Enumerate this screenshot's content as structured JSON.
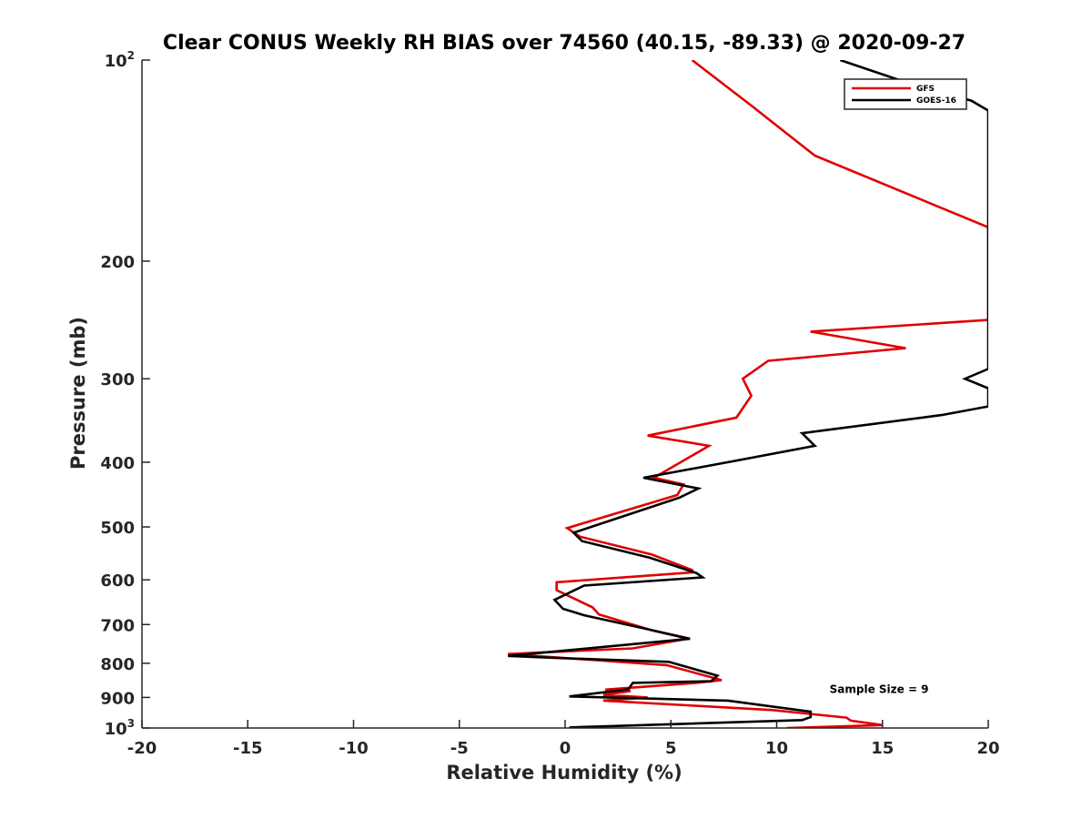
{
  "chart_data": {
    "type": "line",
    "title": "Clear CONUS Weekly RH BIAS over 74560 (40.15, -89.33) @ 2020-09-27",
    "xlabel": "Relative Humidity (%)",
    "ylabel": "Pressure (mb)",
    "xlim": [
      -20,
      20
    ],
    "ylim": [
      100,
      1000
    ],
    "yscale": "log",
    "y_reversed": true,
    "grid": false,
    "legend_position": "top-right",
    "x_ticks": [
      -20,
      -15,
      -10,
      -5,
      0,
      5,
      10,
      15,
      20
    ],
    "y_ticks": [
      {
        "value": 100,
        "label": "10",
        "sup": "2"
      },
      {
        "value": 200,
        "label": "200"
      },
      {
        "value": 300,
        "label": "300"
      },
      {
        "value": 400,
        "label": "400"
      },
      {
        "value": 500,
        "label": "500"
      },
      {
        "value": 600,
        "label": "600"
      },
      {
        "value": 700,
        "label": "700"
      },
      {
        "value": 800,
        "label": "800"
      },
      {
        "value": 900,
        "label": "900"
      },
      {
        "value": 1000,
        "label": "10",
        "sup": "3"
      }
    ],
    "series": [
      {
        "name": "GFS",
        "color": "#e00000",
        "points": [
          [
            6.0,
            100
          ],
          [
            8.8,
            117
          ],
          [
            11.8,
            139
          ],
          [
            20,
            178
          ],
          [
            20,
            245
          ],
          [
            11.6,
            255
          ],
          [
            16.1,
            270
          ],
          [
            9.6,
            282
          ],
          [
            8.4,
            300
          ],
          [
            8.8,
            318
          ],
          [
            8.1,
            343
          ],
          [
            3.9,
            365
          ],
          [
            6.8,
            378
          ],
          [
            4.2,
            422
          ],
          [
            5.6,
            432
          ],
          [
            5.3,
            448
          ],
          [
            0.1,
            502
          ],
          [
            0.7,
            517
          ],
          [
            4.1,
            550
          ],
          [
            6.0,
            580
          ],
          [
            6.0,
            585
          ],
          [
            -0.4,
            605
          ],
          [
            -0.4,
            622
          ],
          [
            1.3,
            660
          ],
          [
            1.6,
            676
          ],
          [
            4.1,
            714
          ],
          [
            5.8,
            735
          ],
          [
            3.2,
            760
          ],
          [
            -2.7,
            775
          ],
          [
            -0.2,
            785
          ],
          [
            4.8,
            805
          ],
          [
            7.4,
            848
          ],
          [
            6.2,
            856
          ],
          [
            1.9,
            876
          ],
          [
            3.1,
            880
          ],
          [
            1.8,
            892
          ],
          [
            3.9,
            900
          ],
          [
            1.8,
            910
          ],
          [
            9.8,
            940
          ],
          [
            13.3,
            965
          ],
          [
            13.5,
            975
          ],
          [
            15.0,
            990
          ],
          [
            10.5,
            1000
          ]
        ]
      },
      {
        "name": "GOES-16",
        "color": "#000000",
        "points": [
          [
            13.0,
            100
          ],
          [
            16.5,
            109
          ],
          [
            19.2,
            115
          ],
          [
            20,
            119
          ],
          [
            20,
            290
          ],
          [
            18.9,
            300
          ],
          [
            20,
            310
          ],
          [
            20,
            330
          ],
          [
            17.8,
            340
          ],
          [
            11.2,
            362
          ],
          [
            11.8,
            378
          ],
          [
            7.7,
            400
          ],
          [
            3.7,
            422
          ],
          [
            6.3,
            438
          ],
          [
            5.4,
            452
          ],
          [
            0.4,
            510
          ],
          [
            0.8,
            525
          ],
          [
            4.0,
            556
          ],
          [
            6.2,
            586
          ],
          [
            6.5,
            595
          ],
          [
            0.9,
            612
          ],
          [
            -0.5,
            643
          ],
          [
            -0.1,
            663
          ],
          [
            0.9,
            678
          ],
          [
            3.6,
            708
          ],
          [
            5.9,
            735
          ],
          [
            -2.7,
            780
          ],
          [
            -0.2,
            786
          ],
          [
            4.9,
            796
          ],
          [
            7.2,
            835
          ],
          [
            6.9,
            851
          ],
          [
            3.2,
            856
          ],
          [
            3.0,
            874
          ],
          [
            2.5,
            879
          ],
          [
            0.2,
            897
          ],
          [
            7.7,
            910
          ],
          [
            11.6,
            945
          ],
          [
            11.6,
            963
          ],
          [
            11.2,
            973
          ],
          [
            0.2,
            998
          ]
        ]
      }
    ],
    "annotations": [
      {
        "text": "Sample Size = 9",
        "x": 12.5,
        "y": 895
      }
    ]
  }
}
